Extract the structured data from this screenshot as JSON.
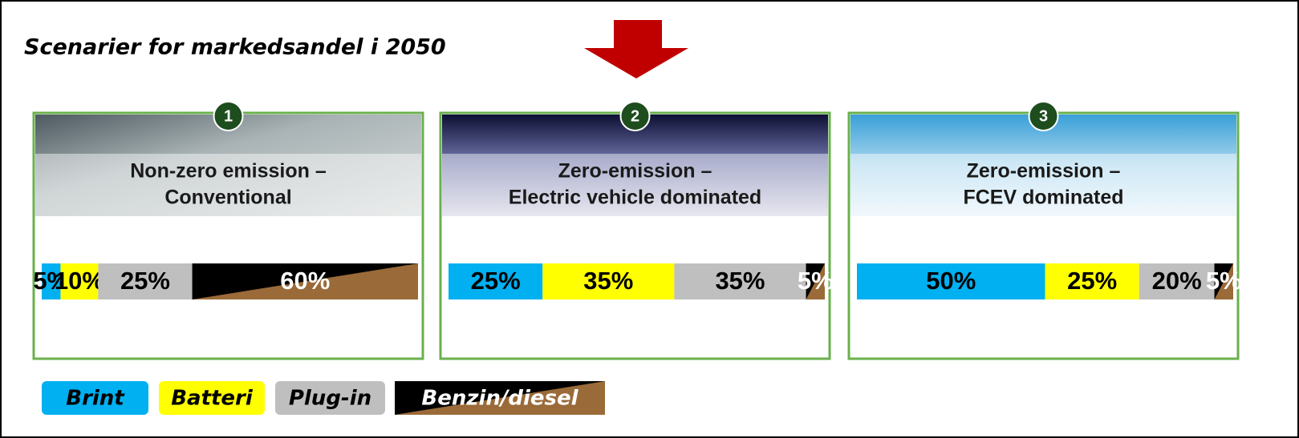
{
  "title": "Scenarier for markedsandel i 2050",
  "colors": [
    "#00b0f0",
    "#ffff00",
    "#bfbfbf",
    "benzin"
  ],
  "scenarios": [
    {
      "number": "1",
      "title": "Non-zero emission –",
      "subtitle": "Conventional",
      "values": [
        5,
        10,
        25,
        60
      ],
      "value_labels": [
        "5%",
        "10%",
        "25%",
        "60%"
      ]
    },
    {
      "number": "2",
      "title": "Zero-emission –",
      "subtitle": "Electric vehicle dominated",
      "values": [
        25,
        35,
        35,
        5
      ],
      "value_labels": [
        "25%",
        "35%",
        "35%",
        "5%"
      ]
    },
    {
      "number": "3",
      "title": "Zero-emission –",
      "subtitle": "FCEV dominated",
      "values": [
        50,
        25,
        20,
        5
      ],
      "value_labels": [
        "50%",
        "25%",
        "20%",
        "5%"
      ]
    }
  ],
  "legend": [
    "Brint",
    "Batteri",
    "Plug-in",
    "Benzin/diesel"
  ]
}
